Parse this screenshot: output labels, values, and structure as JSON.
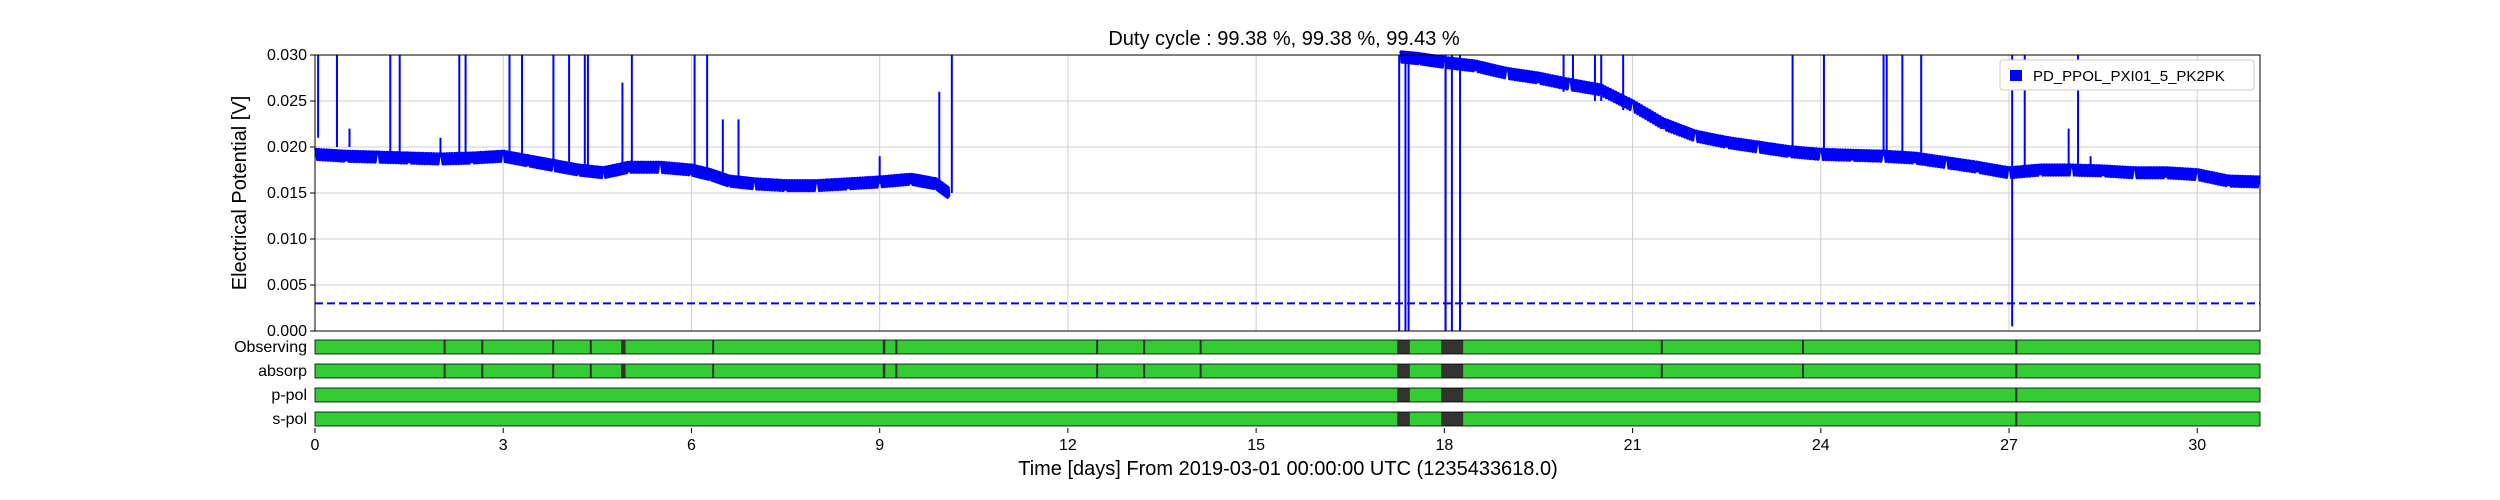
{
  "chart_data": {
    "type": "line",
    "title": "Duty cycle : 99.38 %, 99.38 %, 99.43 %",
    "xlabel": "Time [days] From 2019-03-01 00:00:00 UTC (1235433618.0)",
    "ylabel": "Electrical Potential [V]",
    "xlim": [
      0,
      31
    ],
    "ylim": [
      0,
      0.03
    ],
    "x_ticks": [
      0,
      3,
      6,
      9,
      12,
      15,
      18,
      21,
      24,
      27,
      30
    ],
    "x_tick_labels": [
      "0",
      "3",
      "6",
      "9",
      "12",
      "15",
      "18",
      "21",
      "24",
      "27",
      "30"
    ],
    "y_ticks": [
      0,
      0.005,
      0.01,
      0.015,
      0.02,
      0.025,
      0.03
    ],
    "y_tick_labels": [
      "0.000",
      "0.005",
      "0.010",
      "0.015",
      "0.020",
      "0.025",
      "0.030"
    ],
    "grid": true,
    "legend_position": "top-right",
    "series": [
      {
        "name": "PD_PPOL_PXI01_5_PK2PK",
        "color": "#0000ff",
        "segments": [
          [
            [
              0,
              0.0192
            ],
            [
              0.5,
              0.019
            ],
            [
              1,
              0.0189
            ],
            [
              1.5,
              0.0188
            ],
            [
              2,
              0.0187
            ],
            [
              2.5,
              0.0188
            ],
            [
              3,
              0.019
            ],
            [
              3.4,
              0.0185
            ],
            [
              3.8,
              0.018
            ],
            [
              4.2,
              0.0175
            ],
            [
              4.6,
              0.0172
            ],
            [
              5,
              0.0178
            ],
            [
              5.5,
              0.0178
            ],
            [
              6,
              0.0175
            ],
            [
              6.3,
              0.017
            ],
            [
              6.6,
              0.0163
            ],
            [
              7,
              0.016
            ],
            [
              7.5,
              0.0158
            ],
            [
              8,
              0.0158
            ],
            [
              8.5,
              0.016
            ],
            [
              9,
              0.0162
            ],
            [
              9.5,
              0.0165
            ],
            [
              9.9,
              0.016
            ],
            [
              10.1,
              0.015
            ]
          ],
          [
            [
              17.3,
              0.0298
            ],
            [
              17.6,
              0.0296
            ],
            [
              18,
              0.0292
            ],
            [
              18.5,
              0.0288
            ],
            [
              19,
              0.028
            ],
            [
              19.5,
              0.0275
            ],
            [
              20,
              0.0268
            ],
            [
              20.5,
              0.0262
            ],
            [
              21,
              0.0245
            ],
            [
              21.5,
              0.0225
            ],
            [
              22,
              0.0212
            ],
            [
              22.5,
              0.0205
            ],
            [
              23,
              0.02
            ],
            [
              23.5,
              0.0195
            ],
            [
              24,
              0.0192
            ],
            [
              24.5,
              0.0191
            ],
            [
              25,
              0.019
            ],
            [
              25.5,
              0.0188
            ],
            [
              26,
              0.0183
            ],
            [
              26.5,
              0.0178
            ],
            [
              27,
              0.0172
            ],
            [
              27.5,
              0.0175
            ],
            [
              28,
              0.0175
            ],
            [
              28.5,
              0.0174
            ],
            [
              29,
              0.0172
            ],
            [
              29.5,
              0.0172
            ],
            [
              30,
              0.017
            ],
            [
              30.5,
              0.0163
            ],
            [
              31,
              0.0162
            ]
          ]
        ],
        "spikes": [
          [
            0.05,
            0.021,
            0.03
          ],
          [
            0.35,
            0.02,
            0.03
          ],
          [
            0.55,
            0.02,
            0.022
          ],
          [
            1.2,
            0.019,
            0.03
          ],
          [
            1.35,
            0.019,
            0.03
          ],
          [
            2.0,
            0.019,
            0.021
          ],
          [
            2.3,
            0.019,
            0.03
          ],
          [
            2.4,
            0.019,
            0.03
          ],
          [
            3.1,
            0.019,
            0.03
          ],
          [
            3.3,
            0.019,
            0.03
          ],
          [
            3.8,
            0.018,
            0.03
          ],
          [
            4.05,
            0.018,
            0.03
          ],
          [
            4.3,
            0.018,
            0.03
          ],
          [
            4.35,
            0.018,
            0.03
          ],
          [
            4.9,
            0.018,
            0.027
          ],
          [
            5.05,
            0.018,
            0.03
          ],
          [
            6.05,
            0.017,
            0.03
          ],
          [
            6.25,
            0.017,
            0.03
          ],
          [
            6.5,
            0.017,
            0.023
          ],
          [
            6.75,
            0.016,
            0.023
          ],
          [
            9.0,
            0.016,
            0.019
          ],
          [
            9.95,
            0.016,
            0.026
          ],
          [
            10.15,
            0.015,
            0.03
          ],
          [
            17.28,
            0.0,
            0.03
          ],
          [
            17.38,
            0.0,
            0.03
          ],
          [
            17.43,
            0.0,
            0.03
          ],
          [
            18.02,
            0.0,
            0.03
          ],
          [
            18.12,
            0.0,
            0.03
          ],
          [
            18.25,
            0.0,
            0.03
          ],
          [
            19.9,
            0.026,
            0.03
          ],
          [
            20.05,
            0.026,
            0.03
          ],
          [
            20.4,
            0.025,
            0.03
          ],
          [
            20.5,
            0.025,
            0.03
          ],
          [
            20.85,
            0.024,
            0.03
          ],
          [
            23.55,
            0.019,
            0.03
          ],
          [
            24.05,
            0.019,
            0.03
          ],
          [
            25.0,
            0.019,
            0.03
          ],
          [
            25.05,
            0.019,
            0.03
          ],
          [
            25.3,
            0.019,
            0.03
          ],
          [
            25.6,
            0.018,
            0.03
          ],
          [
            27.05,
            0.0005,
            0.03
          ],
          [
            27.25,
            0.017,
            0.03
          ],
          [
            27.95,
            0.017,
            0.022
          ],
          [
            28.1,
            0.017,
            0.03
          ],
          [
            28.3,
            0.017,
            0.019
          ]
        ]
      },
      {
        "name": "threshold",
        "color": "#0000ff",
        "style": "dashed",
        "values": [
          [
            0,
            0.003
          ],
          [
            31,
            0.003
          ]
        ]
      }
    ],
    "state_segments": {
      "labels": [
        "Observing",
        "absorp",
        "p-pol",
        "s-pol"
      ],
      "active_color": "#33cc33",
      "inactive_color": "#333333",
      "rows": [
        {
          "label": "Observing",
          "off_intervals": [
            [
              2.05,
              2.08
            ],
            [
              2.65,
              2.68
            ],
            [
              3.78,
              3.81
            ],
            [
              4.38,
              4.41
            ],
            [
              4.88,
              4.95
            ],
            [
              6.33,
              6.36
            ],
            [
              9.05,
              9.09
            ],
            [
              9.25,
              9.28
            ],
            [
              12.45,
              12.48
            ],
            [
              13.2,
              13.23
            ],
            [
              14.1,
              14.13
            ],
            [
              17.25,
              17.45
            ],
            [
              17.95,
              18.3
            ],
            [
              21.45,
              21.48
            ],
            [
              23.7,
              23.73
            ],
            [
              27.1,
              27.13
            ]
          ]
        },
        {
          "label": "absorp",
          "off_intervals": [
            [
              2.05,
              2.08
            ],
            [
              2.65,
              2.68
            ],
            [
              3.78,
              3.81
            ],
            [
              4.38,
              4.41
            ],
            [
              4.88,
              4.95
            ],
            [
              6.33,
              6.36
            ],
            [
              9.05,
              9.09
            ],
            [
              9.25,
              9.28
            ],
            [
              12.45,
              12.48
            ],
            [
              13.2,
              13.23
            ],
            [
              14.1,
              14.13
            ],
            [
              17.25,
              17.45
            ],
            [
              17.95,
              18.3
            ],
            [
              21.45,
              21.48
            ],
            [
              23.7,
              23.73
            ],
            [
              27.1,
              27.13
            ]
          ]
        },
        {
          "label": "p-pol",
          "off_intervals": [
            [
              17.25,
              17.45
            ],
            [
              17.95,
              18.3
            ],
            [
              27.1,
              27.13
            ]
          ]
        },
        {
          "label": "s-pol",
          "off_intervals": [
            [
              17.25,
              17.45
            ],
            [
              17.95,
              18.3
            ],
            [
              27.1,
              27.13
            ]
          ]
        }
      ]
    }
  }
}
